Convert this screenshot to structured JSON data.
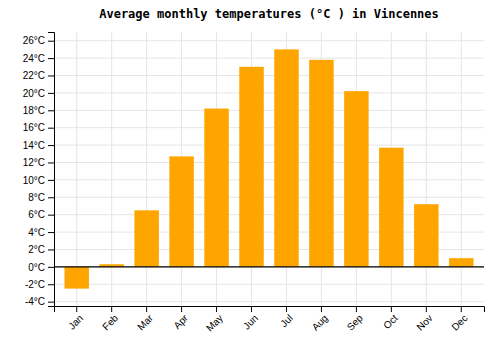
{
  "chart_data": {
    "type": "bar",
    "title": "Average monthly temperatures (°C ) in Vincennes",
    "categories": [
      "Jan",
      "Feb",
      "Mar",
      "Apr",
      "May",
      "Jun",
      "Jul",
      "Aug",
      "Sep",
      "Oct",
      "Nov",
      "Dec"
    ],
    "values": [
      -2.5,
      0.3,
      6.5,
      12.7,
      18.2,
      23.0,
      25.0,
      23.8,
      20.2,
      13.7,
      7.2,
      1.0
    ],
    "color": "#FFA500",
    "ylim": [
      -4.5,
      27
    ],
    "yticks": [
      {
        "value": -4,
        "label": "-4°C"
      },
      {
        "value": -2,
        "label": "-2°C"
      },
      {
        "value": 0,
        "label": "0°C"
      },
      {
        "value": 2,
        "label": "2°C"
      },
      {
        "value": 4,
        "label": "4°C"
      },
      {
        "value": 6,
        "label": "6°C"
      },
      {
        "value": 8,
        "label": "8°C"
      },
      {
        "value": 10,
        "label": "10°C"
      },
      {
        "value": 12,
        "label": "12°C"
      },
      {
        "value": 14,
        "label": "14°C"
      },
      {
        "value": 16,
        "label": "16°C"
      },
      {
        "value": 18,
        "label": "18°C"
      },
      {
        "value": 20,
        "label": "20°C"
      },
      {
        "value": 22,
        "label": "22°C"
      },
      {
        "value": 24,
        "label": "24°C"
      },
      {
        "value": 26,
        "label": "26°C"
      }
    ],
    "grid": true
  }
}
